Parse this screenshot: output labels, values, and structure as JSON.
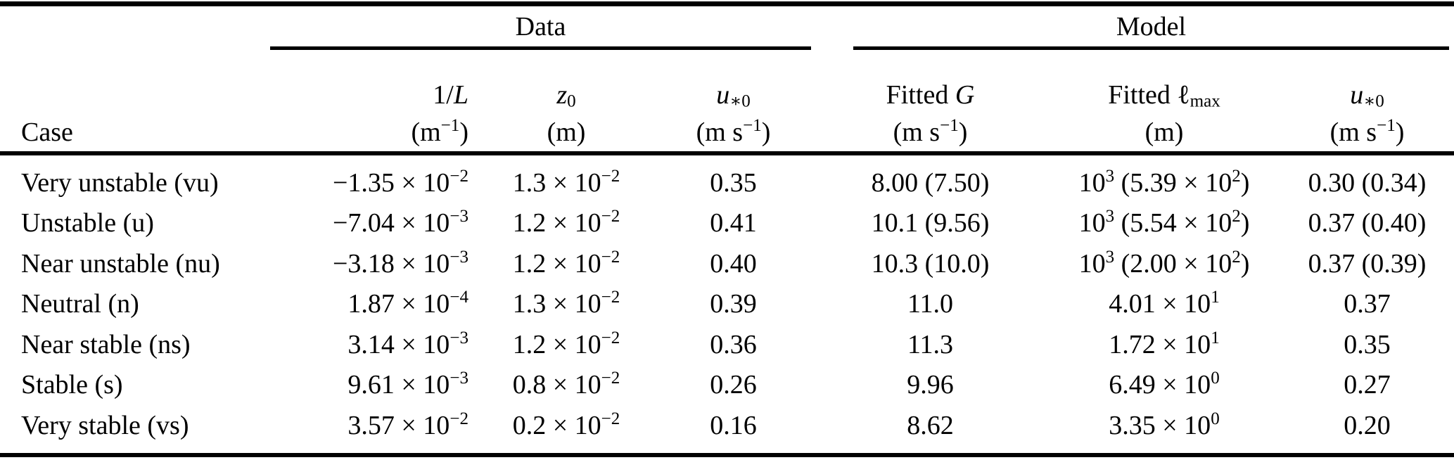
{
  "page": {
    "background_color": "#ffffff",
    "text_color": "#000000",
    "rule_color": "#000000"
  },
  "table": {
    "group_headers": [
      {
        "label": "Data"
      },
      {
        "label": "Model"
      }
    ],
    "columns": [
      {
        "name": "Case",
        "unit": ""
      },
      {
        "name": "1/$L$",
        "unit": "(m^{−1})"
      },
      {
        "name": "$z$_{0}",
        "unit": "(m)"
      },
      {
        "name": "$u$_{∗0}",
        "unit": "(m s^{−1})"
      },
      {
        "name": "Fitted $G$",
        "unit": "(m s^{−1})"
      },
      {
        "name": "Fitted ℓ_{max}",
        "unit": "(m)"
      },
      {
        "name": "$u$_{∗0}",
        "unit": "(m s^{−1})"
      }
    ],
    "rows": [
      {
        "case": "Very unstable (vu)",
        "inv_L": "−1.35 × 10^{−2}",
        "z0": "1.3 × 10^{−2}",
        "ustar0_data": "0.35",
        "fitted_G": "8.00 (7.50)",
        "fitted_lmax": "10^{3} (5.39 × 10^{2})",
        "ustar0_model": "0.30 (0.34)"
      },
      {
        "case": "Unstable (u)",
        "inv_L": "−7.04 × 10^{−3}",
        "z0": "1.2 × 10^{−2}",
        "ustar0_data": "0.41",
        "fitted_G": "10.1 (9.56)",
        "fitted_lmax": "10^{3} (5.54 × 10^{2})",
        "ustar0_model": "0.37 (0.40)"
      },
      {
        "case": "Near unstable (nu)",
        "inv_L": "−3.18 × 10^{−3}",
        "z0": "1.2 × 10^{−2}",
        "ustar0_data": "0.40",
        "fitted_G": "10.3 (10.0)",
        "fitted_lmax": "10^{3} (2.00 × 10^{2})",
        "ustar0_model": "0.37 (0.39)"
      },
      {
        "case": "Neutral (n)",
        "inv_L": "1.87 × 10^{−4}",
        "z0": "1.3 × 10^{−2}",
        "ustar0_data": "0.39",
        "fitted_G": "11.0",
        "fitted_lmax": "4.01 × 10^{1}",
        "ustar0_model": "0.37"
      },
      {
        "case": "Near stable (ns)",
        "inv_L": "3.14 × 10^{−3}",
        "z0": "1.2 × 10^{−2}",
        "ustar0_data": "0.36",
        "fitted_G": "11.3",
        "fitted_lmax": "1.72 × 10^{1}",
        "ustar0_model": "0.35"
      },
      {
        "case": "Stable (s)",
        "inv_L": "9.61 × 10^{−3}",
        "z0": "0.8 × 10^{−2}",
        "ustar0_data": "0.26",
        "fitted_G": "9.96",
        "fitted_lmax": "6.49 × 10^{0}",
        "ustar0_model": "0.27"
      },
      {
        "case": "Very stable (vs)",
        "inv_L": "3.57 × 10^{−2}",
        "z0": "0.2 × 10^{−2}",
        "ustar0_data": "0.16",
        "fitted_G": "8.62",
        "fitted_lmax": "3.35 × 10^{0}",
        "ustar0_model": "0.20"
      }
    ]
  }
}
